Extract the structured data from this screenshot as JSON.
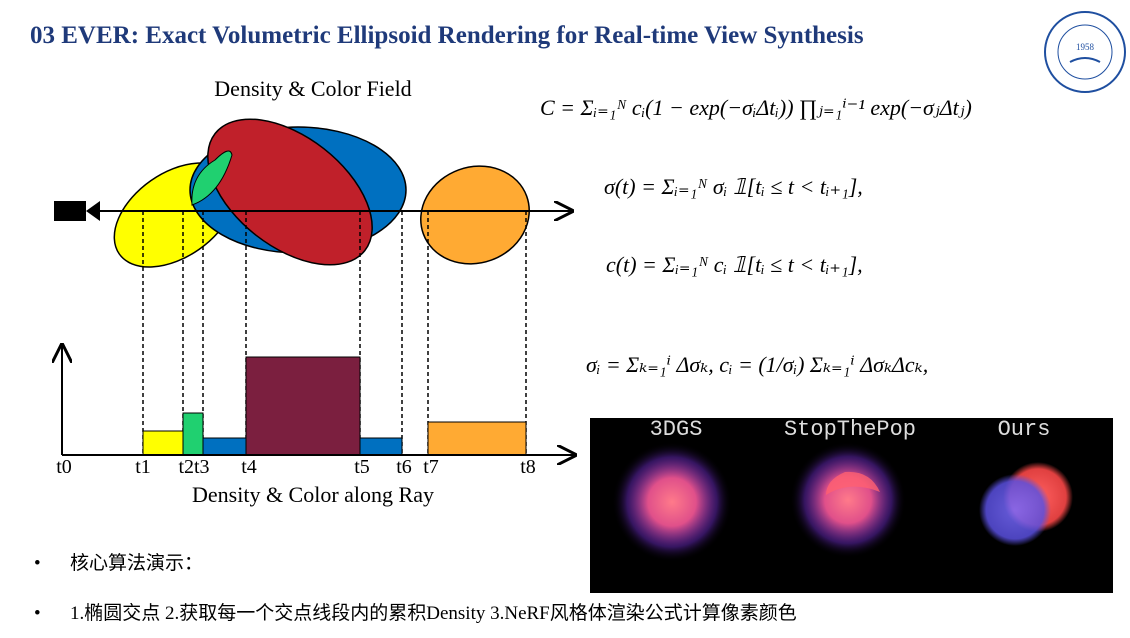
{
  "header": {
    "title": "03 EVER: Exact Volumetric Ellipsoid Rendering for Real-time View Synthesis",
    "logo_year": "1958"
  },
  "diagram": {
    "top_label": "Density & Color Field",
    "bottom_label": "Density & Color along Ray",
    "ticks": [
      "t0",
      "t1",
      "t2t3",
      "t4",
      "t5",
      "t6",
      "t7",
      "t8"
    ]
  },
  "formulas": [
    "C = Σᵢ₌₁ᴺ cᵢ(1 − exp(−σᵢΔtᵢ)) ∏ⱼ₌₁ⁱ⁻¹ exp(−σⱼΔtⱼ)",
    "σ(t) = Σᵢ₌₁ᴺ σᵢ 𝟙[tᵢ ≤ t < tᵢ₊₁],",
    "c(t) = Σᵢ₌₁ᴺ cᵢ 𝟙[tᵢ ≤ t < tᵢ₊₁],",
    "σᵢ = Σₖ₌₁ⁱ Δσₖ,   cᵢ = (1/σᵢ) Σₖ₌₁ⁱ ΔσₖΔcₖ,"
  ],
  "comparison": {
    "labels": [
      "3DGS",
      "StopThePop",
      "Ours"
    ]
  },
  "bullets": [
    "核心算法演示：",
    "1.椭圆交点  2.获取每一个交点线段内的累积Density   3.NeRF风格体渲染公式计算像素颜色"
  ]
}
